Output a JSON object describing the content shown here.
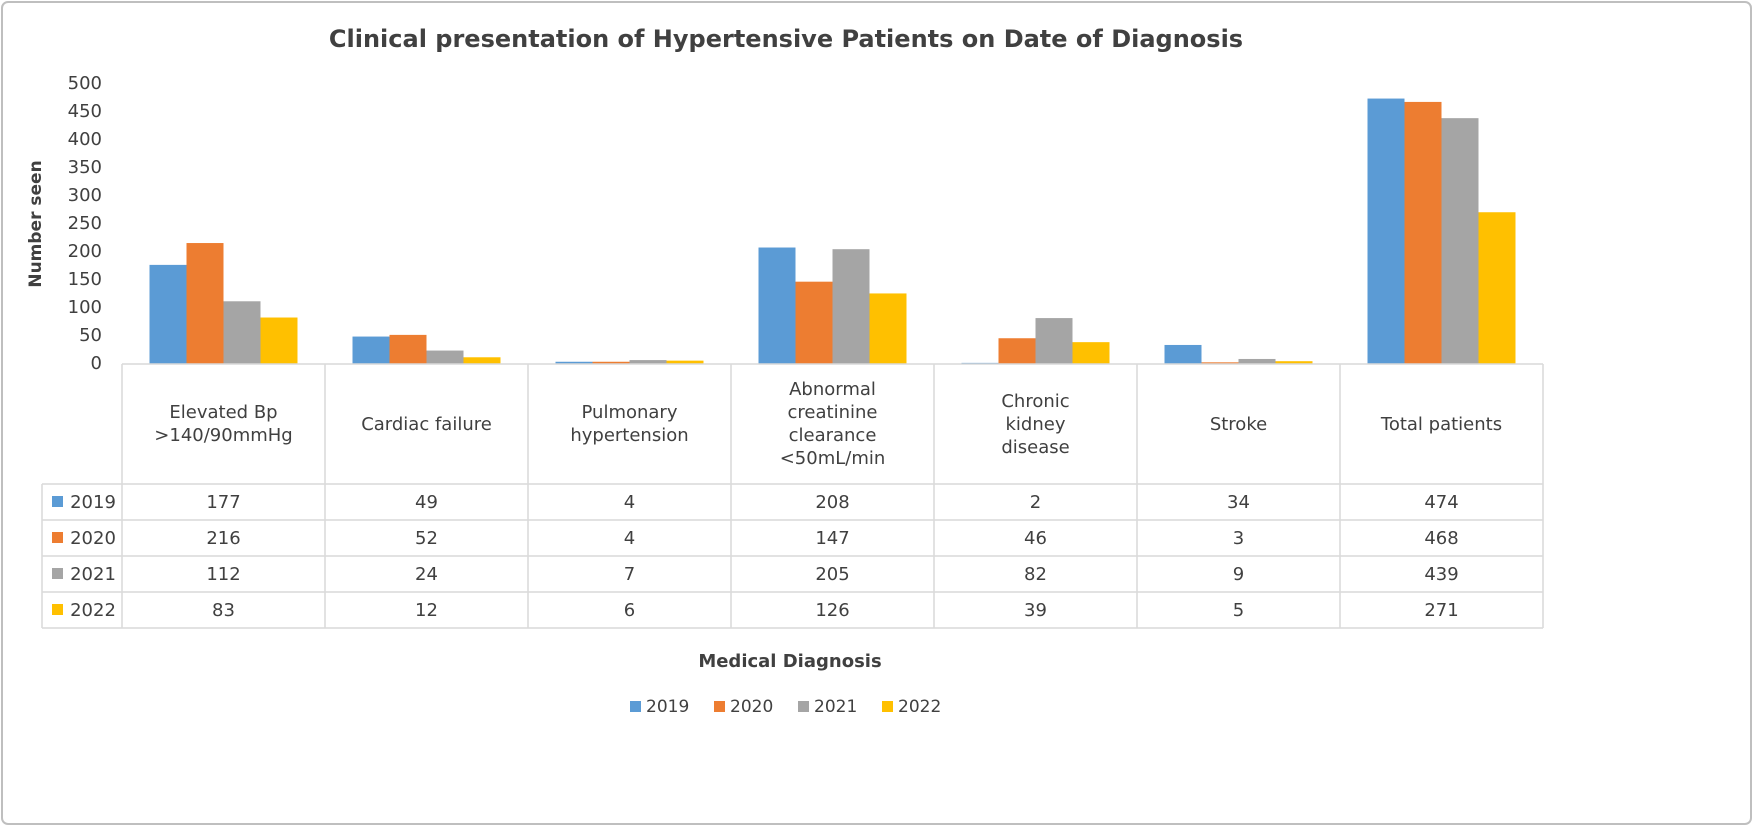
{
  "chart_data": {
    "type": "bar",
    "title": "Clinical presentation of Hypertensive Patients on Date of Diagnosis",
    "y_label": "Number seen",
    "x_label": "Medical Diagnosis",
    "categories": [
      "Elevated Bp >140/90mmHg",
      "Cardiac failure",
      "Pulmonary hypertension",
      "Abnormal creatinine clearance <50mL/min",
      "Chronic kidney disease",
      "Stroke",
      "Total patients"
    ],
    "series": [
      {
        "name": "2019",
        "color": "#5b9bd5",
        "values": [
          177,
          49,
          4,
          208,
          2,
          34,
          474
        ]
      },
      {
        "name": "2020",
        "color": "#ed7d31",
        "values": [
          216,
          52,
          4,
          147,
          46,
          3,
          468
        ]
      },
      {
        "name": "2021",
        "color": "#a5a5a5",
        "values": [
          112,
          24,
          7,
          205,
          82,
          9,
          439
        ]
      },
      {
        "name": "2022",
        "color": "#ffc000",
        "values": [
          83,
          12,
          6,
          126,
          39,
          5,
          271
        ]
      }
    ],
    "ylim": [
      0,
      500
    ],
    "yticks": [
      0,
      50,
      100,
      150,
      200,
      250,
      300,
      350,
      400,
      450,
      500
    ],
    "grid": false,
    "legend": "bottom",
    "data_table": true
  }
}
